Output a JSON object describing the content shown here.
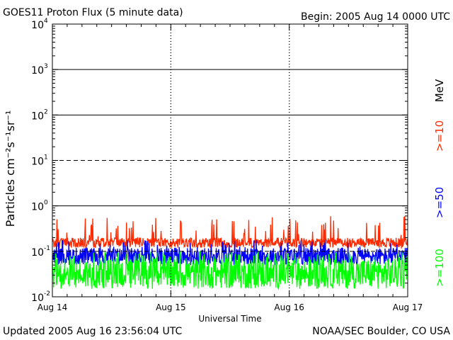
{
  "header": {
    "title": "GOES11 Proton Flux (5 minute data)",
    "begin": "Begin: 2005 Aug 14 0000 UTC"
  },
  "footer": {
    "updated": "Updated 2005 Aug 16 23:56:04 UTC",
    "credit": "NOAA/SEC Boulder, CO USA"
  },
  "chart_data": {
    "type": "line",
    "title": "GOES11 Proton Flux (5 minute data)",
    "xlabel": "Universal Time",
    "ylabel": "Particles cm⁻²s⁻¹sr⁻¹",
    "yscale": "log",
    "ylim": [
      0.01,
      10000
    ],
    "x_ticks": [
      "Aug 14",
      "Aug 15",
      "Aug 16",
      "Aug 17"
    ],
    "y_ticks": [
      {
        "base": "10",
        "exp": "-2",
        "value": 0.01
      },
      {
        "base": "10",
        "exp": "-1",
        "value": 0.1
      },
      {
        "base": "10",
        "exp": "0",
        "value": 1
      },
      {
        "base": "10",
        "exp": "1",
        "value": 10
      },
      {
        "base": "10",
        "exp": "2",
        "value": 100
      },
      {
        "base": "10",
        "exp": "3",
        "value": 1000
      },
      {
        "base": "10",
        "exp": "4",
        "value": 10000
      }
    ],
    "reference_lines": [
      {
        "value": 1000,
        "style": "solid"
      },
      {
        "value": 100,
        "style": "solid"
      },
      {
        "value": 10,
        "style": "dashed"
      },
      {
        "value": 1,
        "style": "solid"
      },
      {
        "value": 0.1,
        "style": "dashed"
      }
    ],
    "unit_label": "MeV",
    "series": [
      {
        "name": ">=10",
        "color": "#ff2a00",
        "typical": [
          0.12,
          0.2
        ],
        "peak_max": 0.6
      },
      {
        "name": ">=50",
        "color": "#0000ff",
        "typical": [
          0.05,
          0.12
        ],
        "peak_max": 0.18
      },
      {
        "name": ">=100",
        "color": "#00ff00",
        "typical": [
          0.015,
          0.07
        ],
        "peak_max": 0.1
      }
    ]
  }
}
